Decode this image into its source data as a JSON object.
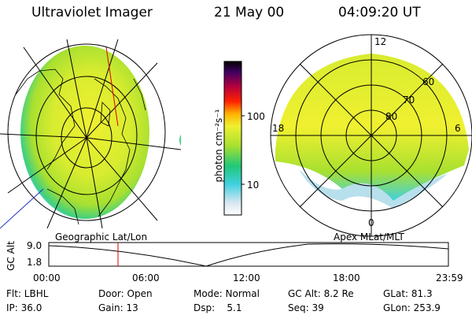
{
  "header": {
    "instrument": "Ultraviolet Imager",
    "date": "21 May 00",
    "time": "04:09:20 UT"
  },
  "colorbar": {
    "unit_label": "photon cm⁻²s⁻¹",
    "tick_labels": [
      "100",
      "10"
    ],
    "scale": "log",
    "colors": [
      "#ffffff",
      "#d8e6f0",
      "#40d0e0",
      "#20c878",
      "#a8e030",
      "#f0f030",
      "#ffb000",
      "#ff2000",
      "#b00040",
      "#400060",
      "#000000"
    ]
  },
  "geo_panel": {
    "caption": "Geographic Lat/Lon"
  },
  "polar_panel": {
    "caption": "Apex MLat/MLT",
    "mlt_labels": [
      "12",
      "18",
      "6",
      "0"
    ],
    "lat_labels": [
      "60",
      "70",
      "80"
    ]
  },
  "orbit_plot": {
    "ylabel": "GC Alt",
    "ytick_labels": [
      "9.0",
      "1.8"
    ],
    "xtick_labels": [
      "00:00",
      "06:00",
      "12:00",
      "18:00",
      "23:59"
    ],
    "current_time_marker": "04:09",
    "marker_color": "#e00000"
  },
  "info": {
    "flt": "Flt: LBHL",
    "door": "Door: Open",
    "mode": "Mode: Normal",
    "gcalt": "GC Alt: 8.2 Re",
    "glat": "GLat:  81.3",
    "ip": "IP: 36.0",
    "gain": "Gain: 13",
    "dsp": "Dsp:    5.1",
    "seq": "Seq: 39",
    "glon": "GLon: 253.9"
  }
}
